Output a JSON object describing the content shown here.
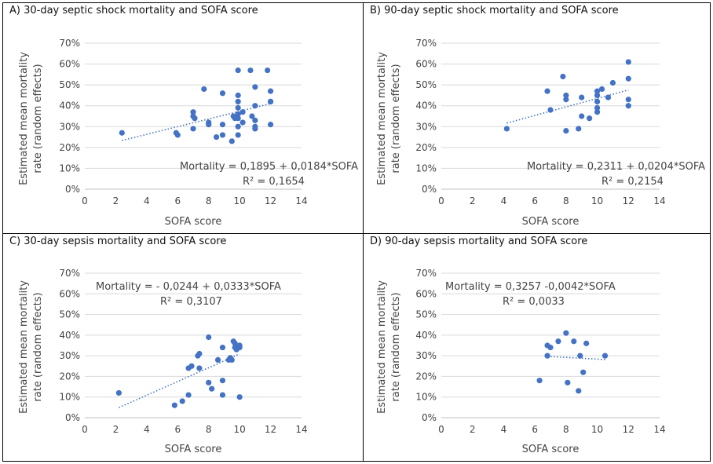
{
  "chart_data": [
    {
      "type": "scatter",
      "title": "A) 30-day septic shock mortality and SOFA score",
      "xlabel": "SOFA score",
      "ylabel_lines": [
        "Estimated mean mortality",
        "rate (random effects)"
      ],
      "xlim": [
        0,
        14
      ],
      "ylim": [
        0,
        0.7
      ],
      "x_ticks": [
        "0",
        "2",
        "4",
        "6",
        "8",
        "10",
        "12",
        "14"
      ],
      "y_ticks": [
        "0%",
        "10%",
        "20%",
        "30%",
        "40%",
        "50%",
        "60%",
        "70%"
      ],
      "trendline": {
        "intercept": 0.1895,
        "slope": 0.0184,
        "x_range": [
          2.4,
          12
        ],
        "style": "dotted"
      },
      "annotation_lines": [
        "Mortality = 0,1895 + 0,0184*SOFA",
        "R² = 0,1654"
      ],
      "points": [
        [
          2.4,
          0.27
        ],
        [
          5.9,
          0.27
        ],
        [
          6.0,
          0.26
        ],
        [
          7.0,
          0.37
        ],
        [
          7.0,
          0.35
        ],
        [
          7.1,
          0.34
        ],
        [
          7.0,
          0.29
        ],
        [
          7.7,
          0.48
        ],
        [
          8.0,
          0.32
        ],
        [
          8.0,
          0.31
        ],
        [
          8.5,
          0.25
        ],
        [
          8.9,
          0.26
        ],
        [
          8.9,
          0.31
        ],
        [
          8.9,
          0.46
        ],
        [
          9.5,
          0.23
        ],
        [
          9.6,
          0.35
        ],
        [
          9.7,
          0.34
        ],
        [
          9.9,
          0.57
        ],
        [
          9.9,
          0.45
        ],
        [
          9.9,
          0.42
        ],
        [
          9.9,
          0.39
        ],
        [
          9.9,
          0.36
        ],
        [
          9.9,
          0.34
        ],
        [
          9.9,
          0.3
        ],
        [
          9.9,
          0.26
        ],
        [
          10.2,
          0.32
        ],
        [
          10.2,
          0.37
        ],
        [
          10.7,
          0.57
        ],
        [
          10.8,
          0.35
        ],
        [
          11.0,
          0.49
        ],
        [
          11.0,
          0.4
        ],
        [
          11.0,
          0.33
        ],
        [
          11.0,
          0.3
        ],
        [
          11.0,
          0.29
        ],
        [
          11.8,
          0.57
        ],
        [
          12.0,
          0.47
        ],
        [
          12.0,
          0.42
        ],
        [
          12.0,
          0.42
        ],
        [
          12.0,
          0.31
        ]
      ]
    },
    {
      "type": "scatter",
      "title": "B) 90-day septic shock mortality and SOFA score",
      "xlabel": "SOFA score",
      "ylabel_lines": [
        "Estimated mean mortality",
        "rate (random effects)"
      ],
      "xlim": [
        0,
        14
      ],
      "ylim": [
        0,
        0.7
      ],
      "x_ticks": [
        "0",
        "2",
        "4",
        "6",
        "8",
        "10",
        "12",
        "14"
      ],
      "y_ticks": [
        "0%",
        "10%",
        "20%",
        "30%",
        "40%",
        "50%",
        "60%",
        "70%"
      ],
      "trendline": {
        "intercept": 0.2311,
        "slope": 0.0204,
        "x_range": [
          4.2,
          12
        ],
        "style": "dotted"
      },
      "annotation_lines": [
        "Mortality = 0,2311 + 0,0204*SOFA",
        "R² = 0,2154"
      ],
      "points": [
        [
          4.2,
          0.29
        ],
        [
          6.8,
          0.47
        ],
        [
          7.0,
          0.38
        ],
        [
          7.8,
          0.54
        ],
        [
          8.0,
          0.45
        ],
        [
          8.0,
          0.43
        ],
        [
          8.0,
          0.28
        ],
        [
          8.8,
          0.29
        ],
        [
          9.0,
          0.44
        ],
        [
          9.0,
          0.35
        ],
        [
          9.5,
          0.34
        ],
        [
          10.0,
          0.47
        ],
        [
          10.0,
          0.45
        ],
        [
          10.0,
          0.42
        ],
        [
          10.0,
          0.39
        ],
        [
          10.0,
          0.37
        ],
        [
          10.3,
          0.48
        ],
        [
          10.7,
          0.44
        ],
        [
          11.0,
          0.51
        ],
        [
          12.0,
          0.61
        ],
        [
          12.0,
          0.53
        ],
        [
          12.0,
          0.43
        ],
        [
          12.0,
          0.4
        ]
      ]
    },
    {
      "type": "scatter",
      "title": "C) 30-day sepsis mortality and SOFA score",
      "xlabel": "SOFA score",
      "ylabel_lines": [
        "Estimated mean mortality",
        "rate (random effects)"
      ],
      "xlim": [
        0,
        14
      ],
      "ylim": [
        0,
        0.7
      ],
      "x_ticks": [
        "0",
        "2",
        "4",
        "6",
        "8",
        "10",
        "12",
        "14"
      ],
      "y_ticks": [
        "0%",
        "10%",
        "20%",
        "30%",
        "40%",
        "50%",
        "60%",
        "70%"
      ],
      "trendline": {
        "intercept": -0.0244,
        "slope": 0.0333,
        "x_range": [
          2.2,
          10
        ],
        "style": "dotted"
      },
      "annotation_lines": [
        "Mortality = - 0,0244 + 0,0333*SOFA",
        "R² = 0,3107"
      ],
      "points": [
        [
          2.2,
          0.12
        ],
        [
          5.8,
          0.06
        ],
        [
          6.3,
          0.08
        ],
        [
          6.7,
          0.11
        ],
        [
          6.7,
          0.24
        ],
        [
          6.9,
          0.25
        ],
        [
          7.3,
          0.3
        ],
        [
          7.4,
          0.31
        ],
        [
          7.4,
          0.24
        ],
        [
          8.0,
          0.39
        ],
        [
          8.0,
          0.17
        ],
        [
          8.2,
          0.14
        ],
        [
          8.6,
          0.28
        ],
        [
          8.9,
          0.34
        ],
        [
          8.9,
          0.18
        ],
        [
          8.9,
          0.11
        ],
        [
          9.3,
          0.28
        ],
        [
          9.4,
          0.29
        ],
        [
          9.5,
          0.28
        ],
        [
          9.6,
          0.37
        ],
        [
          9.7,
          0.36
        ],
        [
          9.7,
          0.34
        ],
        [
          9.8,
          0.33
        ],
        [
          10.0,
          0.34
        ],
        [
          10.0,
          0.35
        ],
        [
          10.0,
          0.1
        ]
      ]
    },
    {
      "type": "scatter",
      "title": "D) 90-day sepsis mortality and SOFA score",
      "xlabel": "SOFA score",
      "ylabel_lines": [
        "Estimated mean mortality",
        "rate (random effects)"
      ],
      "xlim": [
        0,
        14
      ],
      "ylim": [
        0,
        0.7
      ],
      "x_ticks": [
        "0",
        "2",
        "4",
        "6",
        "8",
        "10",
        "12",
        "14"
      ],
      "y_ticks": [
        "0%",
        "10%",
        "20%",
        "30%",
        "40%",
        "50%",
        "60%",
        "70%"
      ],
      "trendline": {
        "intercept": 0.3257,
        "slope": -0.0042,
        "x_range": [
          6.8,
          10.5
        ],
        "style": "dotted"
      },
      "annotation_lines": [
        "Mortality = 0,3257 -0,0042*SOFA",
        "R² = 0,0033"
      ],
      "points": [
        [
          6.3,
          0.18
        ],
        [
          6.8,
          0.35
        ],
        [
          6.8,
          0.3
        ],
        [
          7.0,
          0.34
        ],
        [
          7.5,
          0.37
        ],
        [
          8.0,
          0.41
        ],
        [
          8.1,
          0.17
        ],
        [
          8.5,
          0.37
        ],
        [
          8.8,
          0.13
        ],
        [
          8.9,
          0.3
        ],
        [
          9.1,
          0.22
        ],
        [
          9.3,
          0.36
        ],
        [
          10.5,
          0.3
        ]
      ]
    }
  ],
  "colors": {
    "marker": "#4472c4",
    "trendline": "#4472c4",
    "gridline": "#d9d9d9",
    "tick_text": "#595959",
    "border": "#000000"
  }
}
